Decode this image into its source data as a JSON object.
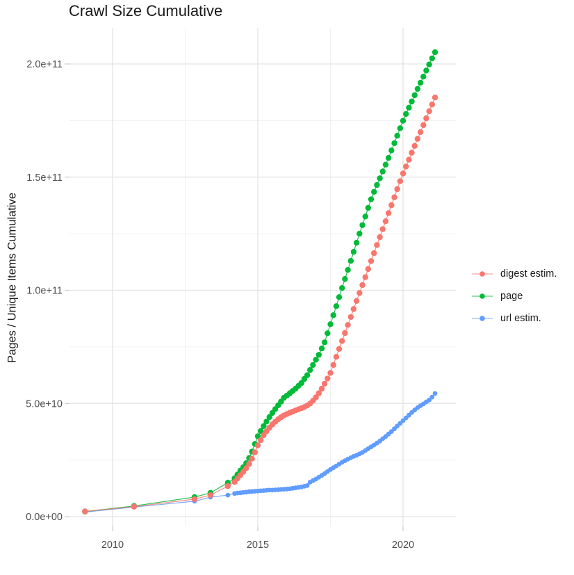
{
  "title": "Crawl Size Cumulative",
  "y_axis": {
    "label": "Pages / Unique Items Cumulative",
    "ticks": [
      {
        "label": "0.0e+00",
        "value_e9": 0
      },
      {
        "label": "5.0e+10",
        "value_e9": 50
      },
      {
        "label": "1.0e+11",
        "value_e9": 100
      },
      {
        "label": "1.5e+11",
        "value_e9": 150
      },
      {
        "label": "2.0e+11",
        "value_e9": 200
      }
    ],
    "minor_gridlines_e9": [
      25,
      75,
      125,
      175
    ]
  },
  "x_axis": {
    "ticks": [
      {
        "label": "2010",
        "value": 2010
      },
      {
        "label": "2015",
        "value": 2015
      },
      {
        "label": "2020",
        "value": 2020
      }
    ],
    "minor_gridlines": [
      2012.5,
      2017.5
    ]
  },
  "chart_data": {
    "type": "line",
    "title": "Crawl Size Cumulative",
    "xlabel": "",
    "ylabel": "Pages / Unique Items Cumulative",
    "x_unit": "year (decimal, one point per crawl)",
    "y_unit": "cumulative count; values stored in billions (1e9)",
    "xlim": [
      2008.5,
      2021.8
    ],
    "ylim_e9": [
      -5,
      215
    ],
    "grid": true,
    "legend_position": "right",
    "marker": "point-with-line",
    "series": [
      {
        "name": "digest estim.",
        "color": "#F8766D",
        "points_year_value_e9": [
          [
            2009.05,
            2.3
          ],
          [
            2010.74,
            4.4
          ],
          [
            2012.82,
            7.7
          ],
          [
            2013.37,
            9.5
          ],
          [
            2013.97,
            13.5
          ],
          [
            2014.2,
            15.3
          ],
          [
            2014.3,
            16.8
          ],
          [
            2014.4,
            18.3
          ],
          [
            2014.5,
            19.8
          ],
          [
            2014.6,
            21.4
          ],
          [
            2014.7,
            23.3
          ],
          [
            2014.8,
            25.6
          ],
          [
            2014.9,
            28.4
          ],
          [
            2015,
            31.5
          ],
          [
            2015.1,
            33.8
          ],
          [
            2015.2,
            36
          ],
          [
            2015.3,
            37.7
          ],
          [
            2015.4,
            39.3
          ],
          [
            2015.5,
            40.7
          ],
          [
            2015.6,
            41.9
          ],
          [
            2015.7,
            43
          ],
          [
            2015.8,
            43.9
          ],
          [
            2015.9,
            44.7
          ],
          [
            2016,
            45.3
          ],
          [
            2016.1,
            45.9
          ],
          [
            2016.2,
            46.4
          ],
          [
            2016.3,
            46.9
          ],
          [
            2016.4,
            47.4
          ],
          [
            2016.5,
            47.9
          ],
          [
            2016.6,
            48.4
          ],
          [
            2016.7,
            49.1
          ],
          [
            2016.8,
            50
          ],
          [
            2016.9,
            51.2
          ],
          [
            2017,
            52.7
          ],
          [
            2017.1,
            54.5
          ],
          [
            2017.2,
            56.5
          ],
          [
            2017.3,
            58.7
          ],
          [
            2017.4,
            61
          ],
          [
            2017.5,
            63.5
          ],
          [
            2017.6,
            67
          ],
          [
            2017.7,
            70.6
          ],
          [
            2017.8,
            74.1
          ],
          [
            2017.9,
            77.6
          ],
          [
            2018,
            81.1
          ],
          [
            2018.1,
            84.7
          ],
          [
            2018.2,
            88.2
          ],
          [
            2018.3,
            91.7
          ],
          [
            2018.4,
            95.3
          ],
          [
            2018.5,
            98.8
          ],
          [
            2018.6,
            102.3
          ],
          [
            2018.7,
            105.8
          ],
          [
            2018.8,
            109.4
          ],
          [
            2018.9,
            112.9
          ],
          [
            2019,
            116.4
          ],
          [
            2019.1,
            120
          ],
          [
            2019.2,
            123.5
          ],
          [
            2019.3,
            127
          ],
          [
            2019.4,
            130.5
          ],
          [
            2019.5,
            134.1
          ],
          [
            2019.6,
            137.6
          ],
          [
            2019.7,
            141.1
          ],
          [
            2019.8,
            144.7
          ],
          [
            2019.9,
            148.2
          ],
          [
            2020,
            151.6
          ],
          [
            2020.1,
            154.7
          ],
          [
            2020.2,
            157.7
          ],
          [
            2020.3,
            160.8
          ],
          [
            2020.4,
            163.8
          ],
          [
            2020.5,
            166.9
          ],
          [
            2020.6,
            169.9
          ],
          [
            2020.7,
            173
          ],
          [
            2020.8,
            176
          ],
          [
            2020.9,
            179.1
          ],
          [
            2021,
            182.1
          ],
          [
            2021.1,
            185.2
          ]
        ]
      },
      {
        "name": "page",
        "color": "#00BA38",
        "points_year_value_e9": [
          [
            2009.05,
            2.2
          ],
          [
            2010.74,
            4.7
          ],
          [
            2012.82,
            8.6
          ],
          [
            2013.37,
            10.5
          ],
          [
            2013.97,
            15
          ],
          [
            2014.2,
            16.9
          ],
          [
            2014.3,
            18.6
          ],
          [
            2014.4,
            20.3
          ],
          [
            2014.5,
            21.8
          ],
          [
            2014.6,
            23.6
          ],
          [
            2014.7,
            25.9
          ],
          [
            2014.8,
            28.7
          ],
          [
            2014.9,
            32.1
          ],
          [
            2015,
            35.5
          ],
          [
            2015.1,
            37.8
          ],
          [
            2015.2,
            40
          ],
          [
            2015.3,
            42
          ],
          [
            2015.4,
            44
          ],
          [
            2015.5,
            45.8
          ],
          [
            2015.6,
            47.5
          ],
          [
            2015.7,
            49.2
          ],
          [
            2015.8,
            50.8
          ],
          [
            2015.9,
            52.5
          ],
          [
            2016,
            53.5
          ],
          [
            2016.1,
            54.5
          ],
          [
            2016.2,
            55.5
          ],
          [
            2016.3,
            56.5
          ],
          [
            2016.4,
            57.8
          ],
          [
            2016.5,
            59
          ],
          [
            2016.6,
            60.8
          ],
          [
            2016.7,
            62.5
          ],
          [
            2016.8,
            64.8
          ],
          [
            2016.9,
            67
          ],
          [
            2017,
            69.3
          ],
          [
            2017.1,
            71.5
          ],
          [
            2017.2,
            74.3
          ],
          [
            2017.3,
            77
          ],
          [
            2017.4,
            81
          ],
          [
            2017.5,
            85
          ],
          [
            2017.6,
            89
          ],
          [
            2017.7,
            93
          ],
          [
            2017.8,
            97
          ],
          [
            2017.9,
            101
          ],
          [
            2018,
            105
          ],
          [
            2018.1,
            109
          ],
          [
            2018.2,
            113
          ],
          [
            2018.3,
            117
          ],
          [
            2018.4,
            121
          ],
          [
            2018.5,
            125
          ],
          [
            2018.6,
            128.8
          ],
          [
            2018.7,
            132.6
          ],
          [
            2018.8,
            136.4
          ],
          [
            2018.9,
            140.2
          ],
          [
            2019,
            143.5
          ],
          [
            2019.1,
            146.5
          ],
          [
            2019.2,
            149.5
          ],
          [
            2019.3,
            152.5
          ],
          [
            2019.4,
            155.5
          ],
          [
            2019.5,
            158.5
          ],
          [
            2019.6,
            161.8
          ],
          [
            2019.7,
            165
          ],
          [
            2019.8,
            168.3
          ],
          [
            2019.9,
            171.6
          ],
          [
            2020,
            174.9
          ],
          [
            2020.1,
            177.9
          ],
          [
            2020.2,
            180.7
          ],
          [
            2020.3,
            183.4
          ],
          [
            2020.4,
            186.2
          ],
          [
            2020.5,
            189
          ],
          [
            2020.6,
            191.7
          ],
          [
            2020.7,
            194.4
          ],
          [
            2020.8,
            197.1
          ],
          [
            2020.9,
            199.8
          ],
          [
            2021,
            202.5
          ],
          [
            2021.1,
            205.2
          ]
        ]
      },
      {
        "name": "url estim.",
        "color": "#619CFF",
        "points_year_value_e9": [
          [
            2009.05,
            2
          ],
          [
            2010.74,
            4.2
          ],
          [
            2012.82,
            6.8
          ],
          [
            2013.37,
            8.6
          ],
          [
            2013.97,
            9.5
          ],
          [
            2014.2,
            10.2
          ],
          [
            2014.3,
            10.4
          ],
          [
            2014.4,
            10.5
          ],
          [
            2014.5,
            10.7
          ],
          [
            2014.6,
            10.8
          ],
          [
            2014.7,
            11
          ],
          [
            2014.8,
            11.1
          ],
          [
            2014.9,
            11.2
          ],
          [
            2015,
            11.3
          ],
          [
            2015.1,
            11.4
          ],
          [
            2015.2,
            11.5
          ],
          [
            2015.3,
            11.6
          ],
          [
            2015.4,
            11.7
          ],
          [
            2015.5,
            11.7
          ],
          [
            2015.6,
            11.8
          ],
          [
            2015.7,
            11.9
          ],
          [
            2015.8,
            12
          ],
          [
            2015.9,
            12.1
          ],
          [
            2016,
            12.2
          ],
          [
            2016.1,
            12.3
          ],
          [
            2016.2,
            12.5
          ],
          [
            2016.3,
            12.7
          ],
          [
            2016.4,
            12.9
          ],
          [
            2016.5,
            13.1
          ],
          [
            2016.6,
            13.4
          ],
          [
            2016.7,
            13.7
          ],
          [
            2016.8,
            15.2
          ],
          [
            2016.9,
            15.9
          ],
          [
            2017,
            16.6
          ],
          [
            2017.1,
            17.4
          ],
          [
            2017.2,
            18.2
          ],
          [
            2017.3,
            19
          ],
          [
            2017.4,
            19.9
          ],
          [
            2017.5,
            20.8
          ],
          [
            2017.6,
            21.6
          ],
          [
            2017.7,
            22.4
          ],
          [
            2017.8,
            23.2
          ],
          [
            2017.9,
            24
          ],
          [
            2018,
            24.7
          ],
          [
            2018.1,
            25.4
          ],
          [
            2018.2,
            26
          ],
          [
            2018.3,
            26.6
          ],
          [
            2018.4,
            27.1
          ],
          [
            2018.5,
            27.7
          ],
          [
            2018.6,
            28.4
          ],
          [
            2018.7,
            29.2
          ],
          [
            2018.8,
            30
          ],
          [
            2018.9,
            30.8
          ],
          [
            2019,
            31.6
          ],
          [
            2019.1,
            32.5
          ],
          [
            2019.2,
            33.4
          ],
          [
            2019.3,
            34.4
          ],
          [
            2019.4,
            35.4
          ],
          [
            2019.5,
            36.5
          ],
          [
            2019.6,
            37.6
          ],
          [
            2019.7,
            38.8
          ],
          [
            2019.8,
            40
          ],
          [
            2019.9,
            41.2
          ],
          [
            2020,
            42.4
          ],
          [
            2020.1,
            43.6
          ],
          [
            2020.2,
            44.8
          ],
          [
            2020.3,
            46
          ],
          [
            2020.4,
            47.1
          ],
          [
            2020.5,
            48.1
          ],
          [
            2020.6,
            49
          ],
          [
            2020.7,
            49.8
          ],
          [
            2020.8,
            50.7
          ],
          [
            2020.9,
            51.5
          ],
          [
            2021,
            52.8
          ],
          [
            2021.1,
            54.4
          ]
        ]
      }
    ]
  }
}
